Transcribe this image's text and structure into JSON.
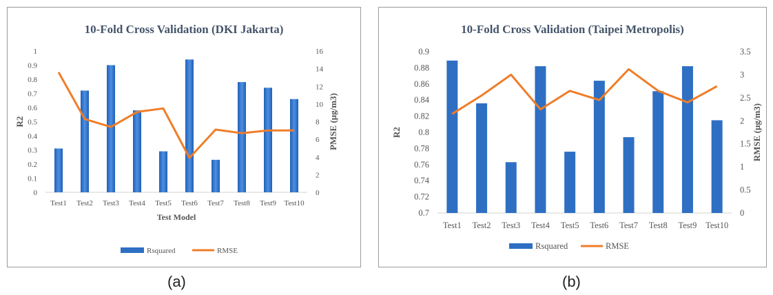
{
  "captions": {
    "a": "(a)",
    "b": "(b)"
  },
  "colors": {
    "bar": "#2e6fc4",
    "bar_light": "#4f8fe0",
    "line": "#ef7d28",
    "text": "#555555",
    "title": "#44546a",
    "grid": "#d9d9d9"
  },
  "chart_data": [
    {
      "type": "bar+line",
      "title": "10-Fold Cross Validation (DKI Jakarta)",
      "xlabel": "Test Model",
      "ylabel_left": "R2",
      "ylabel_right": "PMSE (μg/m3)",
      "categories": [
        "Test1",
        "Test2",
        "Test3",
        "Test4",
        "Test5",
        "Test6",
        "Test7",
        "Test8",
        "Test9",
        "Test10"
      ],
      "y_left": {
        "min": 0,
        "max": 1,
        "ticks": [
          "0",
          "0.1",
          "0.2",
          "0.3",
          "0.4",
          "0.5",
          "0.6",
          "0.7",
          "0.8",
          "0.9",
          "1"
        ]
      },
      "y_right": {
        "min": 0,
        "max": 16,
        "ticks": [
          "0",
          "2",
          "4",
          "6",
          "8",
          "10",
          "12",
          "14",
          "16"
        ]
      },
      "series": [
        {
          "name": "Rsquared",
          "kind": "bar",
          "axis": "left",
          "values": [
            0.31,
            0.72,
            0.9,
            0.58,
            0.29,
            0.94,
            0.23,
            0.78,
            0.74,
            0.66
          ]
        },
        {
          "name": "RMSE",
          "kind": "line",
          "axis": "right",
          "values": [
            13.6,
            8.3,
            7.4,
            9.1,
            9.5,
            3.9,
            7.1,
            6.7,
            7.0,
            7.0
          ]
        }
      ],
      "grid": false,
      "legend": "bottom"
    },
    {
      "type": "bar+line",
      "title": "10-Fold Cross Validation (Taipei Metropolis)",
      "xlabel": "",
      "ylabel_left": "R2",
      "ylabel_right": "RMSE (μg/m3)",
      "categories": [
        "Test1",
        "Test2",
        "Test3",
        "Test4",
        "Test5",
        "Test6",
        "Test7",
        "Test8",
        "Test9",
        "Test10"
      ],
      "y_left": {
        "min": 0.7,
        "max": 0.9,
        "ticks": [
          "0.7",
          "0.72",
          "0.74",
          "0.76",
          "0.78",
          "0.8",
          "0.82",
          "0.84",
          "0.86",
          "0.88",
          "0.9"
        ]
      },
      "y_right": {
        "min": 0,
        "max": 3.5,
        "ticks": [
          "0",
          "0.5",
          "1",
          "1.5",
          "2",
          "2.5",
          "3",
          "3.5"
        ]
      },
      "series": [
        {
          "name": "Rsquared",
          "kind": "bar",
          "axis": "left",
          "values": [
            0.889,
            0.836,
            0.763,
            0.882,
            0.776,
            0.864,
            0.794,
            0.851,
            0.882,
            0.815
          ]
        },
        {
          "name": "RMSE",
          "kind": "line",
          "axis": "right",
          "values": [
            2.15,
            2.55,
            3.0,
            2.25,
            2.65,
            2.45,
            3.12,
            2.65,
            2.4,
            2.75
          ]
        }
      ],
      "grid": false,
      "legend": "bottom"
    }
  ]
}
